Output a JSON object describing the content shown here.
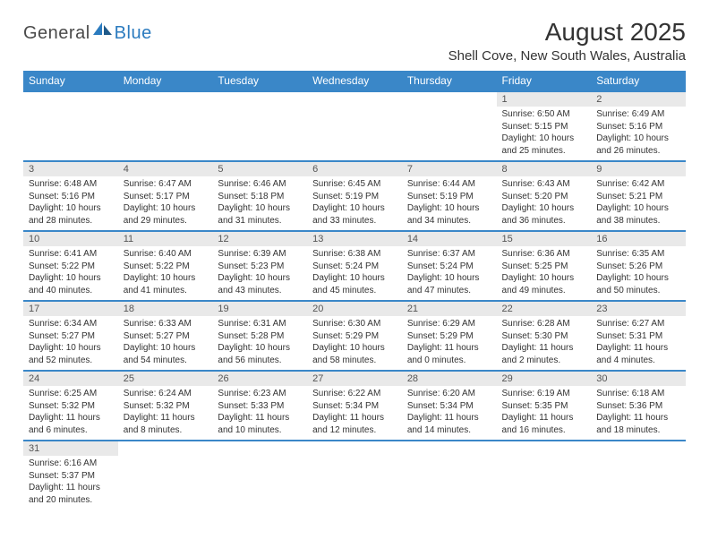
{
  "logo": {
    "general": "General",
    "blue": "Blue"
  },
  "title": "August 2025",
  "subtitle": "Shell Cove, New South Wales, Australia",
  "colors": {
    "header_bg": "#3a87c8",
    "header_text": "#ffffff",
    "daynum_bg": "#e9e9e9",
    "body_text": "#333333",
    "divider": "#3a87c8",
    "logo_general": "#4a4a4a",
    "logo_blue": "#2b7bbf"
  },
  "weekdays": [
    "Sunday",
    "Monday",
    "Tuesday",
    "Wednesday",
    "Thursday",
    "Friday",
    "Saturday"
  ],
  "weeks": [
    [
      null,
      null,
      null,
      null,
      null,
      {
        "d": "1",
        "sr": "6:50 AM",
        "ss": "5:15 PM",
        "dl": "10 hours and 25 minutes."
      },
      {
        "d": "2",
        "sr": "6:49 AM",
        "ss": "5:16 PM",
        "dl": "10 hours and 26 minutes."
      }
    ],
    [
      {
        "d": "3",
        "sr": "6:48 AM",
        "ss": "5:16 PM",
        "dl": "10 hours and 28 minutes."
      },
      {
        "d": "4",
        "sr": "6:47 AM",
        "ss": "5:17 PM",
        "dl": "10 hours and 29 minutes."
      },
      {
        "d": "5",
        "sr": "6:46 AM",
        "ss": "5:18 PM",
        "dl": "10 hours and 31 minutes."
      },
      {
        "d": "6",
        "sr": "6:45 AM",
        "ss": "5:19 PM",
        "dl": "10 hours and 33 minutes."
      },
      {
        "d": "7",
        "sr": "6:44 AM",
        "ss": "5:19 PM",
        "dl": "10 hours and 34 minutes."
      },
      {
        "d": "8",
        "sr": "6:43 AM",
        "ss": "5:20 PM",
        "dl": "10 hours and 36 minutes."
      },
      {
        "d": "9",
        "sr": "6:42 AM",
        "ss": "5:21 PM",
        "dl": "10 hours and 38 minutes."
      }
    ],
    [
      {
        "d": "10",
        "sr": "6:41 AM",
        "ss": "5:22 PM",
        "dl": "10 hours and 40 minutes."
      },
      {
        "d": "11",
        "sr": "6:40 AM",
        "ss": "5:22 PM",
        "dl": "10 hours and 41 minutes."
      },
      {
        "d": "12",
        "sr": "6:39 AM",
        "ss": "5:23 PM",
        "dl": "10 hours and 43 minutes."
      },
      {
        "d": "13",
        "sr": "6:38 AM",
        "ss": "5:24 PM",
        "dl": "10 hours and 45 minutes."
      },
      {
        "d": "14",
        "sr": "6:37 AM",
        "ss": "5:24 PM",
        "dl": "10 hours and 47 minutes."
      },
      {
        "d": "15",
        "sr": "6:36 AM",
        "ss": "5:25 PM",
        "dl": "10 hours and 49 minutes."
      },
      {
        "d": "16",
        "sr": "6:35 AM",
        "ss": "5:26 PM",
        "dl": "10 hours and 50 minutes."
      }
    ],
    [
      {
        "d": "17",
        "sr": "6:34 AM",
        "ss": "5:27 PM",
        "dl": "10 hours and 52 minutes."
      },
      {
        "d": "18",
        "sr": "6:33 AM",
        "ss": "5:27 PM",
        "dl": "10 hours and 54 minutes."
      },
      {
        "d": "19",
        "sr": "6:31 AM",
        "ss": "5:28 PM",
        "dl": "10 hours and 56 minutes."
      },
      {
        "d": "20",
        "sr": "6:30 AM",
        "ss": "5:29 PM",
        "dl": "10 hours and 58 minutes."
      },
      {
        "d": "21",
        "sr": "6:29 AM",
        "ss": "5:29 PM",
        "dl": "11 hours and 0 minutes."
      },
      {
        "d": "22",
        "sr": "6:28 AM",
        "ss": "5:30 PM",
        "dl": "11 hours and 2 minutes."
      },
      {
        "d": "23",
        "sr": "6:27 AM",
        "ss": "5:31 PM",
        "dl": "11 hours and 4 minutes."
      }
    ],
    [
      {
        "d": "24",
        "sr": "6:25 AM",
        "ss": "5:32 PM",
        "dl": "11 hours and 6 minutes."
      },
      {
        "d": "25",
        "sr": "6:24 AM",
        "ss": "5:32 PM",
        "dl": "11 hours and 8 minutes."
      },
      {
        "d": "26",
        "sr": "6:23 AM",
        "ss": "5:33 PM",
        "dl": "11 hours and 10 minutes."
      },
      {
        "d": "27",
        "sr": "6:22 AM",
        "ss": "5:34 PM",
        "dl": "11 hours and 12 minutes."
      },
      {
        "d": "28",
        "sr": "6:20 AM",
        "ss": "5:34 PM",
        "dl": "11 hours and 14 minutes."
      },
      {
        "d": "29",
        "sr": "6:19 AM",
        "ss": "5:35 PM",
        "dl": "11 hours and 16 minutes."
      },
      {
        "d": "30",
        "sr": "6:18 AM",
        "ss": "5:36 PM",
        "dl": "11 hours and 18 minutes."
      }
    ],
    [
      {
        "d": "31",
        "sr": "6:16 AM",
        "ss": "5:37 PM",
        "dl": "11 hours and 20 minutes."
      },
      null,
      null,
      null,
      null,
      null,
      null
    ]
  ],
  "labels": {
    "sunrise": "Sunrise:",
    "sunset": "Sunset:",
    "daylight": "Daylight:"
  }
}
